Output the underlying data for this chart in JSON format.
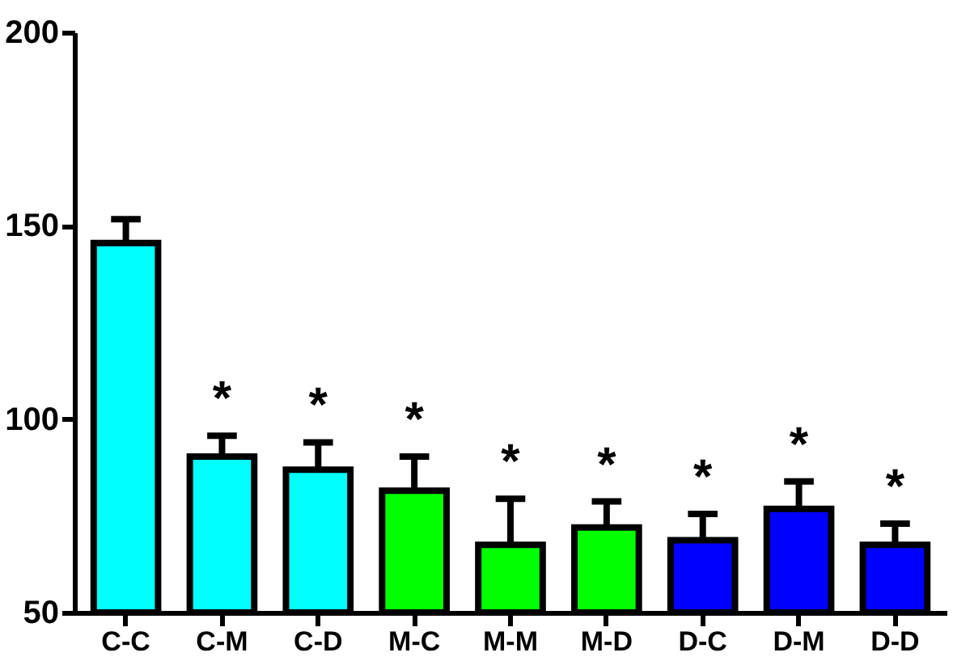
{
  "chart_data": {
    "type": "bar",
    "categories": [
      "C-C",
      "C-M",
      "C-D",
      "M-C",
      "M-M",
      "M-D",
      "D-C",
      "D-M",
      "D-D"
    ],
    "values": [
      145.5,
      90.3,
      86.9,
      81.5,
      67.5,
      72,
      68.7,
      76.8,
      67.5
    ],
    "colors": [
      "#00ffff",
      "#00ffff",
      "#00ffff",
      "#00ff00",
      "#00ff00",
      "#00ff00",
      "#0000ff",
      "#0000ff",
      "#0000ff"
    ],
    "errors": [
      [
        145.5,
        151.7
      ],
      [
        90.3,
        95.7
      ],
      [
        86.9,
        94
      ],
      [
        81.5,
        90.3
      ],
      [
        67.5,
        79.4
      ],
      [
        72,
        78.7
      ],
      [
        68.7,
        75.5
      ],
      [
        76.8,
        83.9
      ],
      [
        67.5,
        73
      ]
    ],
    "annotations": [
      "*",
      "*",
      "*",
      "*",
      "*",
      "*",
      "*",
      "*"
    ],
    "ylim": [
      50,
      200
    ],
    "yticks": [
      50,
      100,
      150,
      200
    ],
    "grid": false
  }
}
